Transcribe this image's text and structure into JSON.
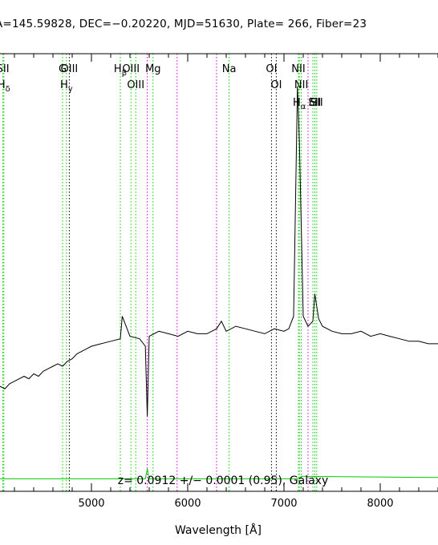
{
  "header": {
    "title": "A=145.59828, DEC=−0.20220, MJD=51630, Plate= 266, Fiber=23"
  },
  "chart_data": {
    "type": "line",
    "title": "A=145.59828, DEC=−0.20220, MJD=51630, Plate= 266, Fiber=23",
    "xlabel": "Wavelength [Å]",
    "ylabel": "",
    "xlim": [
      4050,
      8600
    ],
    "x_ticks": [
      5000,
      6000,
      7000,
      8000
    ],
    "annotation": "z= 0.0912 +/− 0.0001 (0.95), Galaxy",
    "colors": {
      "flux": "#000000",
      "error": "#00cc00",
      "emission": "#00cc00",
      "absorption": "#000000",
      "sky": "#cc00cc"
    },
    "line_markers": [
      {
        "label": "SII",
        "x": 4080,
        "style": "emission"
      },
      {
        "label": "H_δ",
        "x": 4090,
        "style": "emission"
      },
      {
        "label": "G",
        "x": 4700,
        "style": "emission"
      },
      {
        "label": "H_γ",
        "x": 4740,
        "style": "emission"
      },
      {
        "label": "OIII",
        "x": 4770,
        "style": "absorption"
      },
      {
        "label": "H_β",
        "x": 5300,
        "style": "emission"
      },
      {
        "label": "OIII",
        "x": 5410,
        "style": "emission"
      },
      {
        "label": "OIII",
        "x": 5460,
        "style": "emission"
      },
      {
        "label": "Mg",
        "x": 5640,
        "style": "emission"
      },
      {
        "label": "Na",
        "x": 6430,
        "style": "emission"
      },
      {
        "label": "OI",
        "x": 6870,
        "style": "absorption"
      },
      {
        "label": "OI",
        "x": 6920,
        "style": "absorption"
      },
      {
        "label": "NII",
        "x": 7150,
        "style": "emission"
      },
      {
        "label": "NII",
        "x": 7180,
        "style": "emission"
      },
      {
        "label": "H_α",
        "x": 7160,
        "style": "emission"
      },
      {
        "label": "Li",
        "x": 7300,
        "style": "emission"
      },
      {
        "label": "SII",
        "x": 7320,
        "style": "emission"
      },
      {
        "label": "SII",
        "x": 7340,
        "style": "emission"
      }
    ],
    "sky_lines": [
      5580,
      5890,
      6300,
      7250
    ],
    "series": [
      {
        "style": "flux",
        "x": [
          4050,
          4100,
          4150,
          4200,
          4250,
          4300,
          4350,
          4400,
          4450,
          4500,
          4550,
          4600,
          4650,
          4700,
          4750,
          4800,
          4850,
          4900,
          4950,
          5000,
          5100,
          5200,
          5300,
          5320,
          5400,
          5500,
          5560,
          5580,
          5600,
          5700,
          5800,
          5900,
          6000,
          6100,
          6200,
          6300,
          6350,
          6400,
          6500,
          6600,
          6700,
          6800,
          6900,
          7000,
          7050,
          7100,
          7140,
          7160,
          7180,
          7200,
          7250,
          7300,
          7320,
          7340,
          7360,
          7400,
          7500,
          7600,
          7700,
          7800,
          7900,
          8000,
          8100,
          8200,
          8300,
          8400,
          8500,
          8600
        ],
        "y": [
          0.42,
          0.41,
          0.43,
          0.44,
          0.45,
          0.46,
          0.45,
          0.47,
          0.46,
          0.48,
          0.49,
          0.5,
          0.51,
          0.5,
          0.52,
          0.53,
          0.55,
          0.56,
          0.57,
          0.58,
          0.59,
          0.6,
          0.61,
          0.7,
          0.62,
          0.61,
          0.58,
          0.3,
          0.62,
          0.64,
          0.63,
          0.62,
          0.64,
          0.63,
          0.63,
          0.65,
          0.68,
          0.64,
          0.66,
          0.65,
          0.64,
          0.63,
          0.65,
          0.64,
          0.65,
          0.7,
          1.62,
          1.4,
          1.05,
          0.7,
          0.66,
          0.68,
          0.79,
          0.74,
          0.69,
          0.66,
          0.64,
          0.63,
          0.63,
          0.64,
          0.62,
          0.63,
          0.62,
          0.61,
          0.6,
          0.6,
          0.59,
          0.59
        ]
      },
      {
        "style": "error",
        "x": [
          4050,
          5560,
          5580,
          5600,
          7160,
          7180,
          8600
        ],
        "y": [
          0.05,
          0.05,
          0.09,
          0.05,
          0.05,
          0.06,
          0.055
        ]
      }
    ],
    "ylim": [
      0,
      1.75
    ]
  }
}
